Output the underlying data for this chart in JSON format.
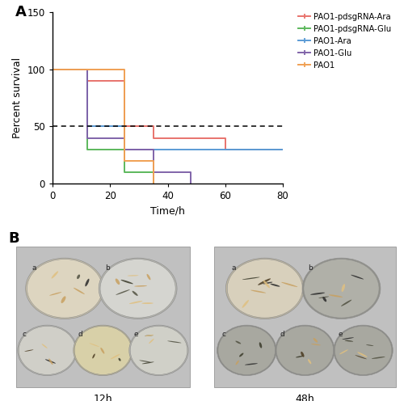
{
  "title_A": "A",
  "title_B": "B",
  "xlabel": "Time/h",
  "ylabel": "Percent survival",
  "xlim": [
    0,
    80
  ],
  "ylim": [
    0,
    150
  ],
  "yticks": [
    0,
    50,
    100,
    150
  ],
  "xticks": [
    0,
    20,
    40,
    60,
    80
  ],
  "dashed_y": 50,
  "series": [
    {
      "label": "PAO1-pdsgRNA-Ara",
      "color": "#e8736c",
      "x": [
        0,
        12,
        25,
        35,
        60,
        72,
        80
      ],
      "y": [
        100,
        90,
        50,
        40,
        30,
        30,
        30
      ]
    },
    {
      "label": "PAO1-pdsgRNA-Glu",
      "color": "#5cb85c",
      "x": [
        0,
        12,
        25,
        35
      ],
      "y": [
        100,
        30,
        10,
        0
      ]
    },
    {
      "label": "PAO1-Ara",
      "color": "#5b9bd5",
      "x": [
        0,
        12,
        25,
        80
      ],
      "y": [
        100,
        50,
        30,
        30
      ]
    },
    {
      "label": "PAO1-Glu",
      "color": "#8064a9",
      "x": [
        0,
        12,
        25,
        35,
        48
      ],
      "y": [
        100,
        40,
        30,
        10,
        0
      ]
    },
    {
      "label": "PAO1",
      "color": "#f0a054",
      "x": [
        0,
        25,
        35
      ],
      "y": [
        100,
        20,
        0
      ]
    }
  ],
  "bg_color": "#ffffff",
  "label_12h": "12h",
  "label_48h": "48h",
  "photo_bg": "#d0d0d0"
}
